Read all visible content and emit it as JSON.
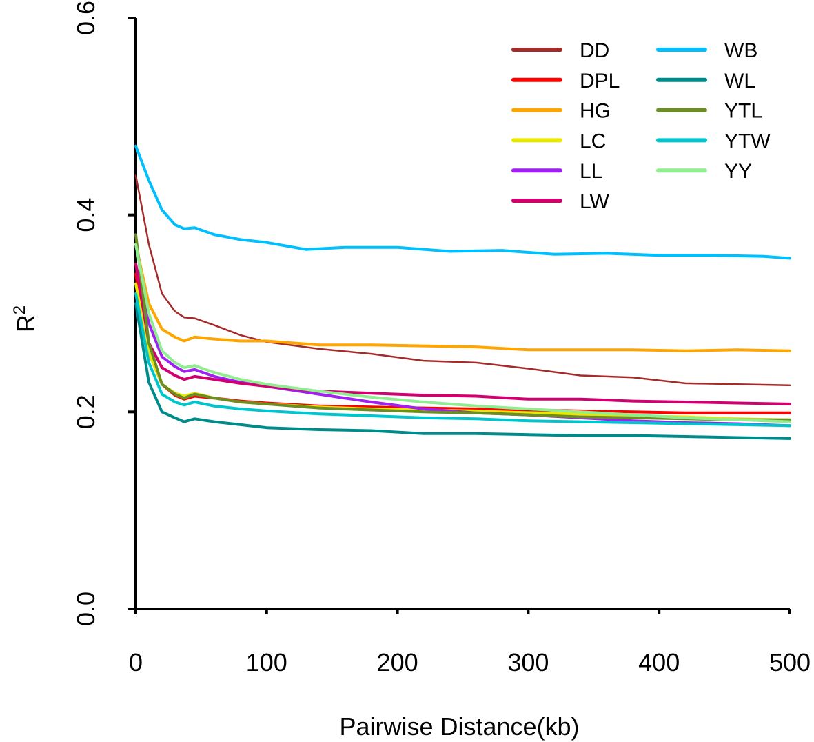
{
  "chart_data": {
    "type": "line",
    "title": "",
    "xlabel": "Pairwise Distance(kb)",
    "ylabel": "R",
    "ylabel_sup": "2",
    "xlim": [
      0,
      500
    ],
    "ylim": [
      0.0,
      0.6
    ],
    "xticks": [
      0,
      100,
      200,
      300,
      400,
      500
    ],
    "xtick_labels": [
      "0",
      "100",
      "200",
      "300",
      "400",
      "500"
    ],
    "yticks": [
      0.0,
      0.2,
      0.4,
      0.6
    ],
    "ytick_labels": [
      "0.0",
      "0.2",
      "0.4",
      "0.6"
    ],
    "grid": false,
    "legend_position": "top-right",
    "series": [
      {
        "name": "DD",
        "color": "#a52a2a",
        "x": [
          0,
          10,
          20,
          30,
          37,
          45,
          60,
          80,
          100,
          140,
          180,
          220,
          260,
          300,
          340,
          380,
          420,
          460,
          500
        ],
        "y": [
          0.44,
          0.37,
          0.32,
          0.302,
          0.296,
          0.295,
          0.288,
          0.278,
          0.271,
          0.264,
          0.259,
          0.252,
          0.25,
          0.244,
          0.237,
          0.235,
          0.229,
          0.228,
          0.227
        ]
      },
      {
        "name": "DPL",
        "color": "#ff0000",
        "x": [
          0,
          10,
          20,
          30,
          37,
          45,
          60,
          80,
          100,
          140,
          180,
          220,
          260,
          300,
          340,
          380,
          420,
          460,
          500
        ],
        "y": [
          0.34,
          0.26,
          0.228,
          0.217,
          0.213,
          0.216,
          0.214,
          0.211,
          0.209,
          0.206,
          0.205,
          0.204,
          0.203,
          0.202,
          0.201,
          0.2,
          0.199,
          0.199,
          0.199
        ]
      },
      {
        "name": "HG",
        "color": "#ffa500",
        "x": [
          0,
          10,
          20,
          30,
          37,
          45,
          60,
          80,
          100,
          140,
          180,
          220,
          260,
          300,
          340,
          380,
          420,
          460,
          500
        ],
        "y": [
          0.37,
          0.31,
          0.284,
          0.276,
          0.272,
          0.276,
          0.274,
          0.272,
          0.272,
          0.268,
          0.268,
          0.267,
          0.266,
          0.263,
          0.263,
          0.263,
          0.262,
          0.263,
          0.262
        ]
      },
      {
        "name": "LC",
        "color": "#e8e800",
        "x": [
          0,
          10,
          20,
          30,
          37,
          45,
          60,
          80,
          100,
          140,
          180,
          220,
          260,
          300,
          340,
          380,
          420,
          460,
          500
        ],
        "y": [
          0.33,
          0.26,
          0.228,
          0.219,
          0.216,
          0.219,
          0.214,
          0.21,
          0.208,
          0.205,
          0.203,
          0.202,
          0.201,
          0.199,
          0.198,
          0.196,
          0.195,
          0.193,
          0.192
        ]
      },
      {
        "name": "LL",
        "color": "#a020f0",
        "x": [
          0,
          10,
          20,
          30,
          37,
          45,
          60,
          80,
          100,
          140,
          180,
          220,
          260,
          300,
          340,
          380,
          420,
          460,
          500
        ],
        "y": [
          0.35,
          0.29,
          0.256,
          0.246,
          0.241,
          0.243,
          0.236,
          0.23,
          0.226,
          0.218,
          0.21,
          0.203,
          0.199,
          0.197,
          0.194,
          0.191,
          0.189,
          0.188,
          0.186
        ]
      },
      {
        "name": "LW",
        "color": "#d0006f",
        "x": [
          0,
          10,
          20,
          30,
          37,
          45,
          60,
          80,
          100,
          140,
          180,
          220,
          260,
          300,
          340,
          380,
          420,
          460,
          500
        ],
        "y": [
          0.35,
          0.27,
          0.245,
          0.237,
          0.233,
          0.236,
          0.233,
          0.229,
          0.226,
          0.221,
          0.219,
          0.217,
          0.216,
          0.213,
          0.213,
          0.211,
          0.21,
          0.209,
          0.208
        ]
      },
      {
        "name": "WB",
        "color": "#00bfff",
        "x": [
          0,
          10,
          20,
          30,
          37,
          45,
          60,
          80,
          100,
          130,
          160,
          200,
          240,
          280,
          320,
          360,
          400,
          440,
          480,
          500
        ],
        "y": [
          0.47,
          0.435,
          0.405,
          0.39,
          0.386,
          0.387,
          0.38,
          0.375,
          0.372,
          0.365,
          0.367,
          0.367,
          0.363,
          0.364,
          0.36,
          0.361,
          0.359,
          0.359,
          0.358,
          0.356
        ]
      },
      {
        "name": "WL",
        "color": "#008b8b",
        "x": [
          0,
          10,
          20,
          30,
          37,
          45,
          60,
          80,
          100,
          140,
          180,
          220,
          260,
          300,
          340,
          380,
          420,
          460,
          500
        ],
        "y": [
          0.31,
          0.23,
          0.2,
          0.194,
          0.19,
          0.193,
          0.19,
          0.187,
          0.184,
          0.182,
          0.181,
          0.178,
          0.178,
          0.177,
          0.176,
          0.176,
          0.175,
          0.174,
          0.173
        ]
      },
      {
        "name": "YTL",
        "color": "#6b8e23",
        "x": [
          0,
          10,
          20,
          30,
          37,
          45,
          60,
          80,
          100,
          140,
          180,
          220,
          260,
          300,
          340,
          380,
          420,
          460,
          500
        ],
        "y": [
          0.38,
          0.27,
          0.228,
          0.218,
          0.214,
          0.218,
          0.214,
          0.21,
          0.208,
          0.204,
          0.202,
          0.2,
          0.199,
          0.197,
          0.195,
          0.194,
          0.193,
          0.192,
          0.192
        ]
      },
      {
        "name": "YTW",
        "color": "#00c5cd",
        "x": [
          0,
          10,
          20,
          30,
          37,
          45,
          60,
          80,
          100,
          140,
          180,
          220,
          260,
          300,
          340,
          380,
          420,
          460,
          500
        ],
        "y": [
          0.32,
          0.25,
          0.218,
          0.21,
          0.207,
          0.21,
          0.206,
          0.203,
          0.201,
          0.198,
          0.196,
          0.194,
          0.193,
          0.191,
          0.19,
          0.189,
          0.188,
          0.187,
          0.186
        ]
      },
      {
        "name": "YY",
        "color": "#90ee90",
        "x": [
          0,
          10,
          20,
          30,
          37,
          45,
          60,
          80,
          100,
          140,
          180,
          220,
          260,
          300,
          340,
          380,
          420,
          460,
          500
        ],
        "y": [
          0.37,
          0.3,
          0.262,
          0.25,
          0.245,
          0.247,
          0.24,
          0.233,
          0.228,
          0.221,
          0.215,
          0.21,
          0.206,
          0.203,
          0.2,
          0.197,
          0.194,
          0.192,
          0.19
        ]
      }
    ]
  }
}
